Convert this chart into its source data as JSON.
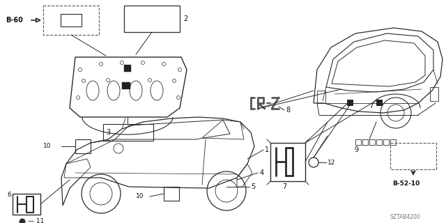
{
  "background_color": "#ffffff",
  "line_color": "#2a2a2a",
  "label_color": "#111111",
  "diagram_code": "SZTAB4200",
  "b60_text": "B-60",
  "b5210_text": "B-52-10",
  "figsize": [
    6.4,
    3.2
  ],
  "dpi": 100
}
